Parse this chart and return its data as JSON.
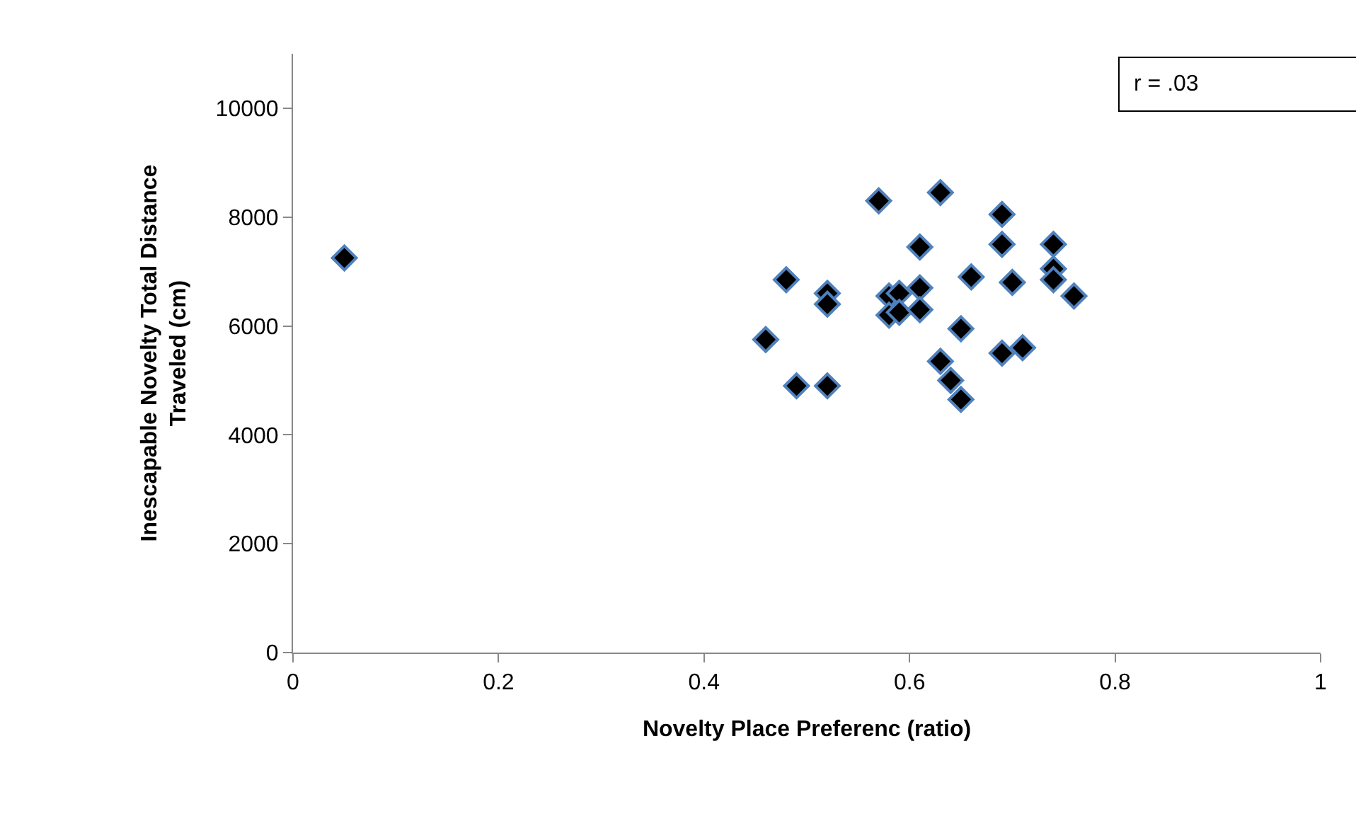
{
  "chart_data": {
    "type": "scatter",
    "xlabel": "Novelty Place Preferenc (ratio)",
    "ylabel": "Inescapable Novelty Total Distance Traveled (cm)",
    "annotations": [
      "r = .03"
    ],
    "x": [
      0.05,
      0.57,
      0.63,
      0.69,
      0.61,
      0.69,
      0.74,
      0.48,
      0.52,
      0.52,
      0.66,
      0.7,
      0.74,
      0.74,
      0.76,
      0.58,
      0.59,
      0.61,
      0.58,
      0.59,
      0.61,
      0.46,
      0.65,
      0.69,
      0.71,
      0.63,
      0.49,
      0.52,
      0.64,
      0.65
    ],
    "values": [
      7250,
      8300,
      8450,
      8050,
      7450,
      7500,
      7500,
      6850,
      6600,
      6400,
      6900,
      6800,
      7050,
      6850,
      6550,
      6550,
      6600,
      6700,
      6200,
      6250,
      6300,
      5750,
      5950,
      5500,
      5600,
      5350,
      4900,
      4900,
      5000,
      4650
    ],
    "color": "#000000",
    "marker": "diamond",
    "grid": false,
    "legend": false,
    "xlim": [
      0,
      1
    ],
    "xticks": [
      0,
      0.2,
      0.4,
      0.6,
      0.8,
      1
    ],
    "ylim": [
      0,
      11000
    ],
    "yticks": [
      0,
      2000,
      4000,
      6000,
      8000,
      10000
    ]
  }
}
